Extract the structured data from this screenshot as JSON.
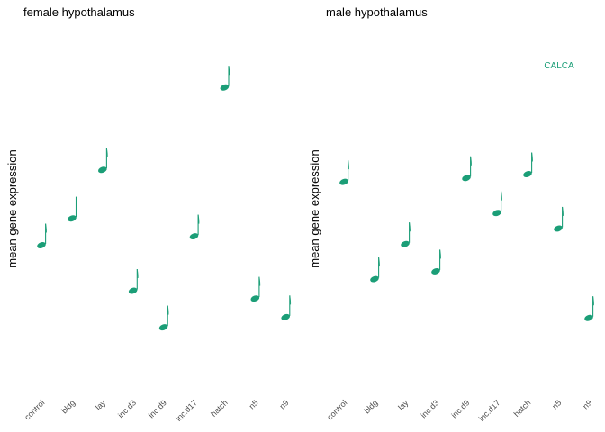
{
  "accent": "#1b9e77",
  "chart_data": [
    {
      "type": "scatter",
      "marker": "music-note",
      "title": "female hypothalamus",
      "xlabel": "",
      "ylabel": "mean gene expression",
      "categories": [
        "control",
        "bldg",
        "lay",
        "inc.d3",
        "inc.d9",
        "inc.d17",
        "hatch",
        "n5",
        "n9"
      ],
      "series": [
        {
          "name": "",
          "color": "#1b9e77",
          "values": [
            5.37,
            6.06,
            7.31,
            4.2,
            3.26,
            5.6,
            9.43,
            4.0,
            3.52
          ]
        }
      ],
      "ylim": [
        2.0,
        10.2
      ],
      "grid": false,
      "legend": "none"
    },
    {
      "type": "scatter",
      "marker": "music-note",
      "title": "male hypothalamus",
      "xlabel": "",
      "ylabel": "mean gene expression",
      "categories": [
        "control",
        "bldg",
        "lay",
        "inc.d3",
        "inc.d9",
        "inc.d17",
        "hatch",
        "n5",
        "n9"
      ],
      "series": [
        {
          "name": "",
          "color": "#1b9e77",
          "values": [
            6.0,
            4.75,
            5.2,
            4.85,
            6.05,
            5.6,
            6.1,
            5.4,
            4.25
          ]
        }
      ],
      "ylim": [
        3.5,
        7.6
      ],
      "grid": false,
      "legend": "none",
      "annotations": [
        {
          "text": "CALCA",
          "color": "#1b9e77"
        }
      ]
    }
  ]
}
